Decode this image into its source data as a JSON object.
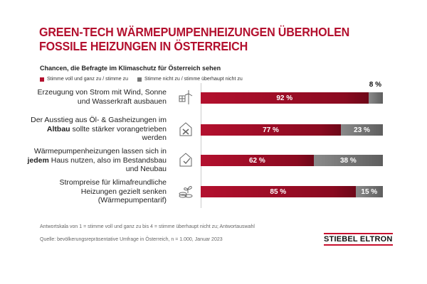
{
  "title_lines": [
    "GREEN-TECH WÄRMEPUMPENHEIZUNGEN ÜBERHOLEN",
    "FOSSILE HEIZUNGEN IN ÖSTERREICH"
  ],
  "subtitle": "Chancen, die Befragte im Klimaschutz für Österreich sehen",
  "colors": {
    "agree": "#b3102e",
    "disagree": "#6e6e6e"
  },
  "chart_data": {
    "type": "bar",
    "orientation": "horizontal-stacked",
    "title": "GREEN-TECH WÄRMEPUMPENHEIZUNGEN ÜBERHOLEN FOSSILE HEIZUNGEN IN ÖSTERREICH",
    "legend": [
      {
        "name": "Stimme voll und ganz zu / stimme zu"
      },
      {
        "name": "Stimme nicht zu / stimme überhaupt nicht zu"
      }
    ],
    "legend_position": "top-left",
    "categories": [
      {
        "pre": "Erzeugung von Strom mit Wind, Sonne und Wasserkraft ausbauen",
        "bold": "",
        "post": "",
        "icon": "wind-solar-icon"
      },
      {
        "pre": "Der Ausstieg aus Öl- & Gasheizungen im ",
        "bold": "Altbau",
        "post": " sollte stärker vorangetrieben werden",
        "icon": "house-tools-icon"
      },
      {
        "pre": "Wärmepumpenheizungen lassen sich in ",
        "bold": "jedem",
        "post": " Haus nutzen, also im Bestandsbau und Neubau",
        "icon": "house-check-icon"
      },
      {
        "pre": "Strompreise für klimafreundliche Heizungen gezielt senken (Wärmepumpentarif)",
        "bold": "",
        "post": "",
        "icon": "coins-plant-icon"
      }
    ],
    "series": [
      {
        "name": "Stimme voll und ganz zu / stimme zu",
        "values": [
          92,
          77,
          62,
          85
        ],
        "labels": [
          "92 %",
          "77 %",
          "62 %",
          "85 %"
        ]
      },
      {
        "name": "Stimme nicht zu / stimme überhaupt nicht zu",
        "values": [
          8,
          23,
          38,
          15
        ],
        "labels": [
          "8 %",
          "23 %",
          "38 %",
          "15 %"
        ]
      }
    ],
    "xlim": [
      0,
      100
    ]
  },
  "footnote": "Antwortskala von 1 = stimme voll und ganz zu bis 4 = stimme überhaupt nicht zu; Antwortauswahl",
  "source": "Quelle: bevölkerungsrepräsentative Umfrage in Österreich, n = 1.000, Januar 2023",
  "logo": "STIEBEL ELTRON"
}
